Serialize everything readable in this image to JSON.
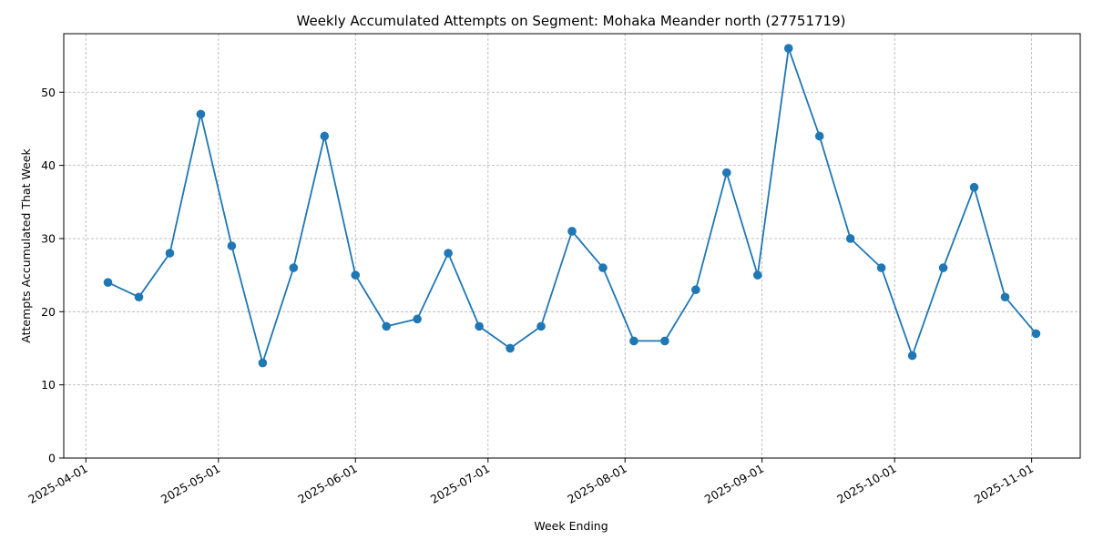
{
  "chart_data": {
    "type": "line",
    "title": "Weekly Accumulated Attempts on Segment: Mohaka Meander north (27751719)",
    "xlabel": "Week Ending",
    "ylabel": "Attempts Accumulated That Week",
    "x_tick_labels": [
      "2025-04-01",
      "2025-05-01",
      "2025-06-01",
      "2025-07-01",
      "2025-08-01",
      "2025-09-01",
      "2025-10-01",
      "2025-11-01"
    ],
    "y_tick_labels": [
      "0",
      "10",
      "20",
      "30",
      "40",
      "50"
    ],
    "xlim": [
      "2025-03-27",
      "2025-11-12"
    ],
    "ylim": [
      0,
      58
    ],
    "grid": true,
    "line_color": "#1f77b4",
    "series": [
      {
        "x": [
          "2025-04-06",
          "2025-04-13",
          "2025-04-20",
          "2025-04-27",
          "2025-05-04",
          "2025-05-11",
          "2025-05-18",
          "2025-05-25",
          "2025-06-01",
          "2025-06-08",
          "2025-06-15",
          "2025-06-22",
          "2025-06-29",
          "2025-07-06",
          "2025-07-13",
          "2025-07-20",
          "2025-07-27",
          "2025-08-03",
          "2025-08-10",
          "2025-08-17",
          "2025-08-24",
          "2025-08-31",
          "2025-09-07",
          "2025-09-14",
          "2025-09-21",
          "2025-09-28",
          "2025-10-05",
          "2025-10-12",
          "2025-10-19",
          "2025-10-26",
          "2025-11-02"
        ],
        "values": [
          24,
          22,
          28,
          47,
          29,
          13,
          26,
          44,
          25,
          18,
          19,
          28,
          18,
          15,
          18,
          31,
          26,
          16,
          16,
          23,
          39,
          25,
          56,
          44,
          30,
          26,
          14,
          26,
          37,
          22,
          17
        ]
      }
    ]
  }
}
